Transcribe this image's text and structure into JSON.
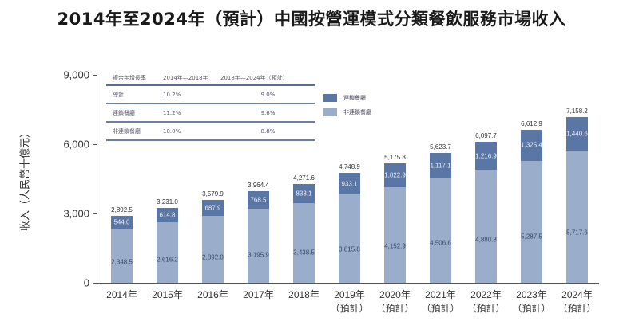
{
  "title": "2014年至2024年（預計）中國按營運模式分類餐飲服務市場收入",
  "y_axis": {
    "label": "收入（人民幣十億元）",
    "ticks": [
      "9,000",
      "6,000",
      "3,000",
      "0"
    ]
  },
  "x_axis": {
    "labels": [
      {
        "year": "2014年",
        "note": ""
      },
      {
        "year": "2015年",
        "note": ""
      },
      {
        "year": "2016年",
        "note": ""
      },
      {
        "year": "2017年",
        "note": ""
      },
      {
        "year": "2018年",
        "note": ""
      },
      {
        "year": "2019年",
        "note": "（預計）"
      },
      {
        "year": "2020年",
        "note": "（預計）"
      },
      {
        "year": "2021年",
        "note": "（預計）"
      },
      {
        "year": "2022年",
        "note": "（預計）"
      },
      {
        "year": "2023年",
        "note": "（預計）"
      },
      {
        "year": "2024年",
        "note": "（預計）"
      }
    ]
  },
  "cagr_table": {
    "headers": [
      "複合年增長率",
      "2014年—2018年",
      "2018年—2024年（預計）"
    ],
    "rows": [
      {
        "label": "總計",
        "v1": "10.2%",
        "v2": "9.0%"
      },
      {
        "label": "連鎖餐廳",
        "v1": "11.2%",
        "v2": "9.6%"
      },
      {
        "label": "非連鎖餐廳",
        "v1": "10.0%",
        "v2": "8.8%"
      }
    ]
  },
  "legend": [
    {
      "label": "連鎖餐廳",
      "color": "#5a76a4"
    },
    {
      "label": "非連鎖餐廳",
      "color": "#9aaecc"
    }
  ],
  "bars": [
    {
      "total": "2,892.5",
      "chain": "544.0",
      "nonchain": "2,348.5"
    },
    {
      "total": "3,231.0",
      "chain": "614.8",
      "nonchain": "2,616.2"
    },
    {
      "total": "3,579.9",
      "chain": "687.9",
      "nonchain": "2,892.0"
    },
    {
      "total": "3,964.4",
      "chain": "768.5",
      "nonchain": "3,195.9"
    },
    {
      "total": "4,271.6",
      "chain": "833.1",
      "nonchain": "3,438.5"
    },
    {
      "total": "4,748.9",
      "chain": "933.1",
      "nonchain": "3,815.8"
    },
    {
      "total": "5,175.8",
      "chain": "1,022.9",
      "nonchain": "4,152.9"
    },
    {
      "total": "5,623.7",
      "chain": "1,117.1",
      "nonchain": "4,506.6"
    },
    {
      "total": "6,097.7",
      "chain": "1,216.9",
      "nonchain": "4,880.8"
    },
    {
      "total": "6,612.9",
      "chain": "1,325.4",
      "nonchain": "5,287.5"
    },
    {
      "total": "7,158.2",
      "chain": "1,440.6",
      "nonchain": "5,717.6"
    }
  ],
  "chart_data": {
    "type": "bar",
    "stacked": true,
    "title": "2014年至2024年（預計）中國按營運模式分類餐飲服務市場收入",
    "xlabel": "",
    "ylabel": "收入（人民幣十億元）",
    "ylim": [
      0,
      9000
    ],
    "yticks": [
      0,
      3000,
      6000,
      9000
    ],
    "grid": false,
    "legend_position": "top-center",
    "categories": [
      "2014年",
      "2015年",
      "2016年",
      "2017年",
      "2018年",
      "2019年（預計）",
      "2020年（預計）",
      "2021年（預計）",
      "2022年（預計）",
      "2023年（預計）",
      "2024年（預計）"
    ],
    "series": [
      {
        "name": "非連鎖餐廳",
        "color": "#9aaecc",
        "values": [
          2348.5,
          2616.2,
          2892.0,
          3195.9,
          3438.5,
          3815.8,
          4152.9,
          4506.6,
          4880.8,
          5287.5,
          5717.6
        ]
      },
      {
        "name": "連鎖餐廳",
        "color": "#5a76a4",
        "values": [
          544.0,
          614.8,
          687.9,
          768.5,
          833.1,
          933.1,
          1022.9,
          1117.1,
          1216.9,
          1325.4,
          1440.6
        ]
      }
    ],
    "totals": [
      2892.5,
      3231.0,
      3579.9,
      3964.4,
      4271.6,
      4748.9,
      5175.8,
      5623.7,
      6097.7,
      6612.9,
      7158.2
    ],
    "annotations": {
      "cagr_table": {
        "headers": [
          "複合年增長率",
          "2014年—2018年",
          "2018年—2024年（預計）"
        ],
        "rows": [
          [
            "總計",
            "10.2%",
            "9.0%"
          ],
          [
            "連鎖餐廳",
            "11.2%",
            "9.6%"
          ],
          [
            "非連鎖餐廳",
            "10.0%",
            "8.8%"
          ]
        ]
      }
    }
  }
}
